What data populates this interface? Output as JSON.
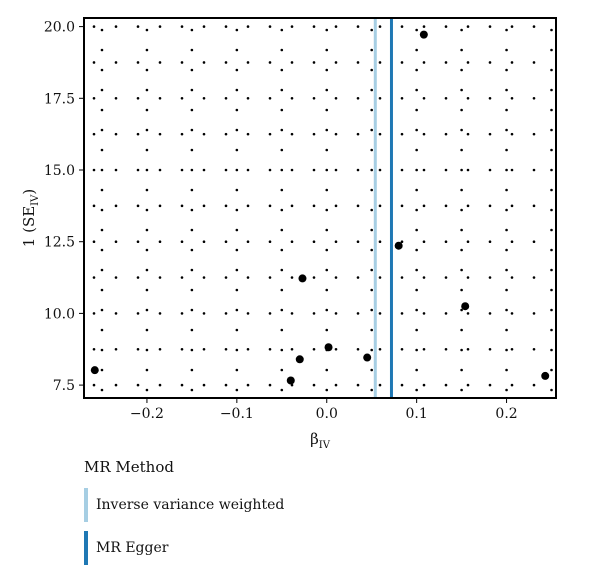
{
  "chart_data": {
    "type": "scatter",
    "xlabel": "β",
    "xlabel_sub": "IV",
    "ylabel": "1 (SE",
    "ylabel_sub": "IV",
    "ylabel_close": ")",
    "xlim": [
      -0.27,
      0.255
    ],
    "ylim": [
      7.05,
      20.3
    ],
    "xticks": [
      -0.2,
      -0.1,
      0.0,
      0.1,
      0.2
    ],
    "xtick_labels": [
      "−0.2",
      "−0.1",
      "0.0",
      "0.1",
      "0.2"
    ],
    "yticks": [
      7.5,
      10.0,
      12.5,
      15.0,
      17.5,
      20.0
    ],
    "ytick_labels": [
      "7.5",
      "10.0",
      "12.5",
      "15.0",
      "17.5",
      "20.0"
    ],
    "grid": true,
    "points": [
      {
        "x": -0.258,
        "y": 8.02
      },
      {
        "x": -0.04,
        "y": 7.66
      },
      {
        "x": -0.03,
        "y": 8.4
      },
      {
        "x": -0.027,
        "y": 11.22
      },
      {
        "x": 0.002,
        "y": 8.82
      },
      {
        "x": 0.045,
        "y": 8.46
      },
      {
        "x": 0.08,
        "y": 12.36
      },
      {
        "x": 0.108,
        "y": 19.72
      },
      {
        "x": 0.154,
        "y": 10.25
      },
      {
        "x": 0.243,
        "y": 7.82
      }
    ],
    "lines": [
      {
        "method": "Inverse variance weighted",
        "x": 0.054,
        "color": "#a6cee3"
      },
      {
        "method": "MR Egger",
        "x": 0.072,
        "color": "#1f78b4"
      }
    ],
    "legend": {
      "title": "MR Method",
      "placement": "bottom-left",
      "items": [
        "Inverse variance weighted",
        "MR Egger"
      ]
    }
  }
}
